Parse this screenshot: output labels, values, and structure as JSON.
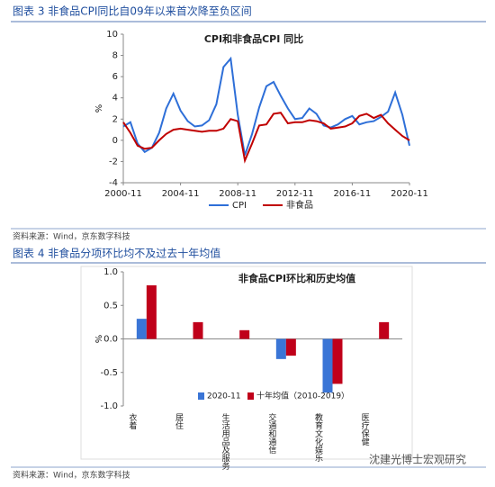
{
  "captions": [
    "图表 3 非食品CPI同比自09年以来首次降至负区间",
    "图表 4 非食品分项环比均不及过去十年均值"
  ],
  "sources": [
    "资料来源：Wind，京东数字科技",
    "资料来源：Wind，京东数字科技"
  ],
  "watermark": "沈建光博士宏观研究",
  "chart_data": [
    {
      "type": "line",
      "title": "CPI和非食品CPI 同比",
      "y_label": "%",
      "x": [
        "2000-11",
        "2001-05",
        "2001-11",
        "2002-05",
        "2002-11",
        "2003-05",
        "2003-11",
        "2004-05",
        "2004-11",
        "2005-05",
        "2005-11",
        "2006-05",
        "2006-11",
        "2007-05",
        "2007-11",
        "2008-05",
        "2008-11",
        "2009-05",
        "2009-11",
        "2010-05",
        "2010-11",
        "2011-05",
        "2011-11",
        "2012-05",
        "2012-11",
        "2013-05",
        "2013-11",
        "2014-05",
        "2014-11",
        "2015-05",
        "2015-11",
        "2016-05",
        "2016-11",
        "2017-05",
        "2017-11",
        "2018-05",
        "2018-11",
        "2019-05",
        "2019-11",
        "2020-05",
        "2020-11"
      ],
      "series": [
        {
          "name": "CPI",
          "color": "#2e6fd8",
          "values": [
            1.3,
            1.7,
            -0.3,
            -1.1,
            -0.7,
            0.7,
            3.0,
            4.4,
            2.8,
            1.8,
            1.3,
            1.4,
            1.9,
            3.4,
            6.9,
            7.7,
            2.4,
            -1.4,
            0.6,
            3.1,
            5.1,
            5.5,
            4.2,
            3.0,
            2.0,
            2.1,
            3.0,
            2.5,
            1.4,
            1.2,
            1.5,
            2.0,
            2.3,
            1.5,
            1.7,
            1.8,
            2.2,
            2.7,
            4.5,
            2.4,
            -0.5
          ]
        },
        {
          "name": "非食品",
          "color": "#c00000",
          "values": [
            1.7,
            0.7,
            -0.5,
            -0.8,
            -0.7,
            0.0,
            0.6,
            1.0,
            1.1,
            1.0,
            0.9,
            0.8,
            0.9,
            0.9,
            1.1,
            2.0,
            1.8,
            -1.9,
            -0.3,
            1.4,
            1.5,
            2.5,
            2.6,
            1.6,
            1.7,
            1.7,
            1.9,
            1.8,
            1.6,
            1.1,
            1.2,
            1.3,
            1.6,
            2.3,
            2.5,
            2.1,
            2.4,
            1.6,
            1.0,
            0.4,
            0.0
          ]
        }
      ],
      "ylim": [
        -4,
        10
      ],
      "yticks": [
        -4,
        -2,
        0,
        2,
        4,
        6,
        8,
        10
      ],
      "legend": "bottom"
    },
    {
      "type": "bar",
      "title": "非食品CPI环比和历史均值",
      "y_label": "%",
      "categories": [
        "衣着",
        "居住",
        "生活用品及服务",
        "交通和通信",
        "教育文化娱乐",
        "医疗保健"
      ],
      "series": [
        {
          "name": "2020-11",
          "color": "#3a75d6",
          "values": [
            0.3,
            0,
            0,
            -0.3,
            -0.8,
            0
          ]
        },
        {
          "name": "十年均值（2010-2019）",
          "color": "#c0001a",
          "values": [
            0.8,
            0.25,
            0.13,
            -0.25,
            -0.67,
            0.25
          ]
        }
      ],
      "ylim": [
        -1.0,
        1.0
      ],
      "yticks": [
        {
          "value": -1.0,
          "label": "-1.0"
        },
        {
          "value": -0.5,
          "label": "-0.5"
        },
        {
          "value": 0,
          "label": "0.0"
        },
        {
          "value": 0.5,
          "label": "0.5"
        },
        {
          "value": 1.0,
          "label": "1.0"
        }
      ],
      "legend": "lower-right"
    }
  ]
}
